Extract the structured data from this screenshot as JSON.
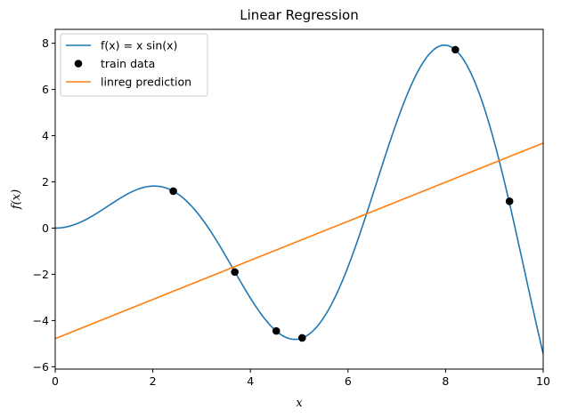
{
  "chart_data": {
    "type": "line",
    "title": "Linear Regression",
    "xlabel": "x",
    "ylabel": "f(x)",
    "xlim": [
      0,
      10
    ],
    "ylim": [
      -6.1,
      8.6
    ],
    "xticks": [
      0,
      2,
      4,
      6,
      8,
      10
    ],
    "yticks": [
      -6,
      -4,
      -2,
      0,
      2,
      4,
      6,
      8
    ],
    "xtick_labels": [
      "0",
      "2",
      "4",
      "6",
      "8",
      "10"
    ],
    "ytick_labels": [
      "−6",
      "−4",
      "−2",
      "0",
      "2",
      "4",
      "6",
      "8"
    ],
    "grid": false,
    "legend_position": "top-left",
    "series": [
      {
        "name": "f(x) = x sin(x)",
        "kind": "line",
        "function": "x*sin(x)",
        "color": "#1f77b4"
      },
      {
        "name": "train data",
        "kind": "scatter",
        "color": "#000000",
        "points": [
          {
            "x": 2.42,
            "y": 1.6
          },
          {
            "x": 3.68,
            "y": -1.9
          },
          {
            "x": 4.53,
            "y": -4.45
          },
          {
            "x": 5.06,
            "y": -4.75
          },
          {
            "x": 8.2,
            "y": 7.72
          },
          {
            "x": 9.31,
            "y": 1.16
          }
        ]
      },
      {
        "name": "linreg prediction",
        "kind": "line",
        "color": "#ff7f0e",
        "x": [
          0,
          10
        ],
        "y": [
          -4.78,
          3.68
        ]
      }
    ]
  }
}
